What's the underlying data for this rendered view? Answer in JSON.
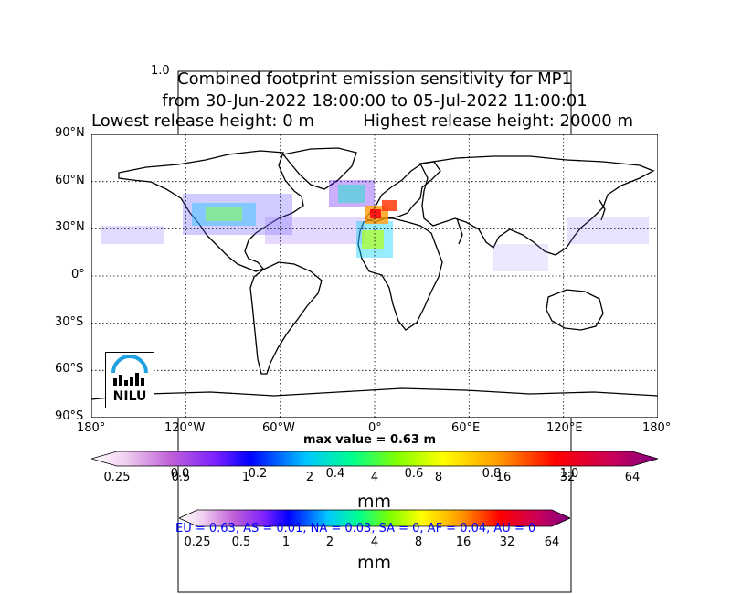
{
  "axes_corner_label": "1.0",
  "title": {
    "line1": "Combined footprint emission sensitivity for MP1",
    "line2": "from 30-Jun-2022 18:00:00 to 05-Jul-2022 11:00:01",
    "line3_left": "Lowest release height: 0 m",
    "line3_right": "Highest release height: 20000 m"
  },
  "map": {
    "lat_labels": [
      "90°N",
      "60°N",
      "30°N",
      "0°",
      "30°S",
      "60°S",
      "90°S"
    ],
    "lon_labels": [
      "180°",
      "120°W",
      "60°W",
      "0°",
      "60°E",
      "120°E",
      "180°"
    ],
    "logo_text": "NILU",
    "max_value_label": "max value = 0.63 m"
  },
  "colorbar1": {
    "ticks": [
      "0.25",
      "0.5",
      "1",
      "2",
      "4",
      "8",
      "16",
      "32",
      "64"
    ],
    "overlay_ticks": [
      "0.0",
      "0.2",
      "0.4",
      "0.6",
      "0.8",
      "1.0"
    ],
    "unit": "mm",
    "colors": [
      "#ffffff",
      "#e8b9e8",
      "#b04fd0",
      "#5a00ff",
      "#0000ff",
      "#00c0ff",
      "#00ff80",
      "#80ff00",
      "#ffff00",
      "#ff9900",
      "#ff0000",
      "#c80060",
      "#800080"
    ]
  },
  "colorbar2": {
    "ticks": [
      "0.25",
      "0.5",
      "1",
      "2",
      "4",
      "8",
      "16",
      "32",
      "64"
    ],
    "unit": "mm",
    "regions_text": "EU = 0.63,  AS = 0.01,  NA = 0.03,  SA = 0,  AF = 0.04,  AU = 0"
  }
}
